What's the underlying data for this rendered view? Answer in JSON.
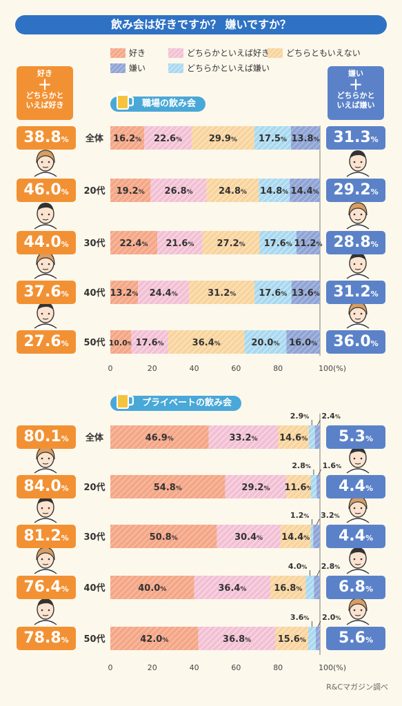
{
  "title": "飲み会は好きですか？ 嫌いですか？",
  "legend": [
    {
      "label": "好き",
      "color": "#f4a686",
      "key": "like"
    },
    {
      "label": "どちらかといえば好き",
      "color": "#f2bfd3",
      "key": "some_like"
    },
    {
      "label": "どちらともいえない",
      "color": "#f8d39c",
      "key": "neutral"
    },
    {
      "label": "嫌い",
      "color": "#8fa3d4",
      "key": "dislike"
    },
    {
      "label": "どちらかといえば嫌い",
      "color": "#a8d8ef",
      "key": "some_dislike"
    }
  ],
  "left_header": {
    "line1": "好き",
    "plus": "＋",
    "line2": "どちらかと",
    "line3": "いえば好き"
  },
  "right_header": {
    "line1": "嫌い",
    "plus": "＋",
    "line2": "どちらかと",
    "line3": "いえば嫌い"
  },
  "pct_unit": "%",
  "credit": "R&Cマガジン調べ",
  "chart_data": [
    {
      "type": "bar",
      "title": "職場の飲み会",
      "categories": [
        "全体",
        "20代",
        "30代",
        "40代",
        "50代"
      ],
      "series": [
        {
          "name": "好き",
          "values": [
            16.2,
            19.2,
            22.4,
            13.2,
            10.0
          ]
        },
        {
          "name": "どちらかといえば好き",
          "values": [
            22.6,
            26.8,
            21.6,
            24.4,
            17.6
          ]
        },
        {
          "name": "どちらともいえない",
          "values": [
            29.9,
            24.8,
            27.2,
            31.2,
            36.4
          ]
        },
        {
          "name": "どちらかといえば嫌い",
          "values": [
            17.5,
            14.8,
            17.6,
            17.6,
            20.0
          ]
        },
        {
          "name": "嫌い",
          "values": [
            13.8,
            14.4,
            11.2,
            13.6,
            16.0
          ]
        }
      ],
      "like_total": [
        38.8,
        46.0,
        44.0,
        37.6,
        27.6
      ],
      "dislike_total": [
        31.3,
        29.2,
        28.8,
        31.2,
        36.0
      ],
      "xticks": [
        "0",
        "20",
        "40",
        "60",
        "80",
        "100(%)"
      ],
      "xlim": [
        0,
        100
      ]
    },
    {
      "type": "bar",
      "title": "プライベートの飲み会",
      "categories": [
        "全体",
        "20代",
        "30代",
        "40代",
        "50代"
      ],
      "series": [
        {
          "name": "好き",
          "values": [
            46.9,
            54.8,
            50.8,
            40.0,
            42.0
          ]
        },
        {
          "name": "どちらかといえば好き",
          "values": [
            33.2,
            29.2,
            30.4,
            36.4,
            36.8
          ]
        },
        {
          "name": "どちらともいえない",
          "values": [
            14.6,
            11.6,
            14.4,
            16.8,
            15.6
          ]
        },
        {
          "name": "どちらかといえば嫌い",
          "values": [
            2.9,
            2.8,
            1.2,
            4.0,
            3.6
          ]
        },
        {
          "name": "嫌い",
          "values": [
            2.4,
            1.6,
            3.2,
            2.8,
            2.0
          ]
        }
      ],
      "like_total": [
        80.1,
        84.0,
        81.2,
        76.4,
        78.8
      ],
      "dislike_total": [
        5.3,
        4.4,
        4.4,
        6.8,
        5.6
      ],
      "xticks": [
        "0",
        "20",
        "40",
        "60",
        "80",
        "100(%)"
      ],
      "xlim": [
        0,
        100
      ]
    }
  ]
}
